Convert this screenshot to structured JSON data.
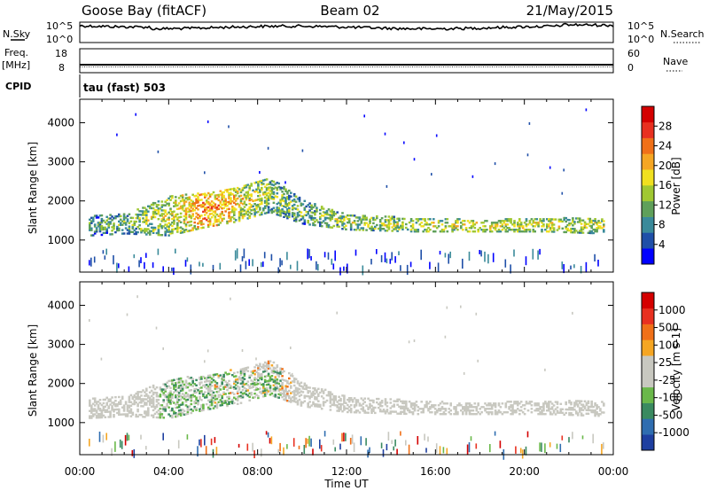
{
  "header": {
    "station": "Goose Bay (fitACF)",
    "beam": "Beam 02",
    "date": "21/May/2015"
  },
  "strip_labels": {
    "nsky": "N.Sky",
    "nsky_top": "10^5",
    "nsky_bottom": "10^0",
    "nsearch": "N.Search",
    "nsearch_top": "10^5",
    "nsearch_bottom": "10^0",
    "freq": "Freq.",
    "freq_unit": "[MHz]",
    "freq_top": "18",
    "freq_bottom": "8",
    "nave": "Nave",
    "nave_top": "60",
    "nave_bottom": "0",
    "cpid": "CPID",
    "cpid_value": "tau (fast) 503"
  },
  "chart_data": [
    {
      "type": "heatmap",
      "panel": "power",
      "ylabel": "Slant Range [km]",
      "y_ticks": [
        "1000",
        "2000",
        "3000",
        "4000"
      ],
      "y_tick_values": [
        1000,
        2000,
        3000,
        4000
      ],
      "ylim": [
        180,
        4600
      ],
      "xlim": [
        0,
        24
      ],
      "x_ticks": [
        "00:00",
        "04:00",
        "08:00",
        "12:00",
        "16:00",
        "20:00",
        "00:00"
      ],
      "colorbar": {
        "label": "Power [dB]",
        "ticks": [
          "4",
          "8",
          "12",
          "16",
          "20",
          "24",
          "28"
        ],
        "colors": [
          "#0000ff",
          "#1f4fa8",
          "#3a8a9a",
          "#5fa05a",
          "#a0c832",
          "#f0e020",
          "#f5a623",
          "#f07018",
          "#e83020",
          "#d40000"
        ]
      },
      "band": [
        {
          "t": 0.5,
          "lo": 1100,
          "hi": 1600,
          "level": 0.35
        },
        {
          "t": 2,
          "lo": 1150,
          "hi": 1650,
          "level": 0.4
        },
        {
          "t": 4,
          "lo": 1100,
          "hi": 2100,
          "level": 0.5
        },
        {
          "t": 5.5,
          "lo": 1300,
          "hi": 2200,
          "level": 0.75
        },
        {
          "t": 7,
          "lo": 1450,
          "hi": 2350,
          "level": 0.6
        },
        {
          "t": 8.5,
          "lo": 1700,
          "hi": 2600,
          "level": 0.45
        },
        {
          "t": 10,
          "lo": 1400,
          "hi": 2000,
          "level": 0.4
        },
        {
          "t": 12,
          "lo": 1250,
          "hi": 1650,
          "level": 0.45
        },
        {
          "t": 15,
          "lo": 1200,
          "hi": 1550,
          "level": 0.5
        },
        {
          "t": 18,
          "lo": 1200,
          "hi": 1500,
          "level": 0.55
        },
        {
          "t": 21,
          "lo": 1200,
          "hi": 1550,
          "level": 0.5
        },
        {
          "t": 23.5,
          "lo": 1150,
          "hi": 1550,
          "level": 0.5
        }
      ]
    },
    {
      "type": "heatmap",
      "panel": "velocity",
      "ylabel": "Slant Range [km]",
      "y_ticks": [
        "1000",
        "2000",
        "3000",
        "4000"
      ],
      "y_tick_values": [
        1000,
        2000,
        3000,
        4000
      ],
      "ylim": [
        180,
        4600
      ],
      "xlim": [
        0,
        24
      ],
      "xlabel": "Time UT",
      "x_ticks": [
        "00:00",
        "04:00",
        "08:00",
        "12:00",
        "16:00",
        "20:00",
        "00:00"
      ],
      "x_tick_values": [
        0,
        4,
        8,
        12,
        16,
        20,
        24
      ],
      "colorbar": {
        "label": "Velocity [m s-1]",
        "ticks": [
          "1000",
          "500",
          "100",
          "25",
          "-25",
          "-100",
          "-500",
          "-1000"
        ],
        "colors": [
          "#1e3fa0",
          "#2f6db0",
          "#3a8a60",
          "#6ab84a",
          "#c8c8c0",
          "#c8c8c0",
          "#f5a623",
          "#f07018",
          "#e83020",
          "#d40000"
        ]
      }
    }
  ]
}
